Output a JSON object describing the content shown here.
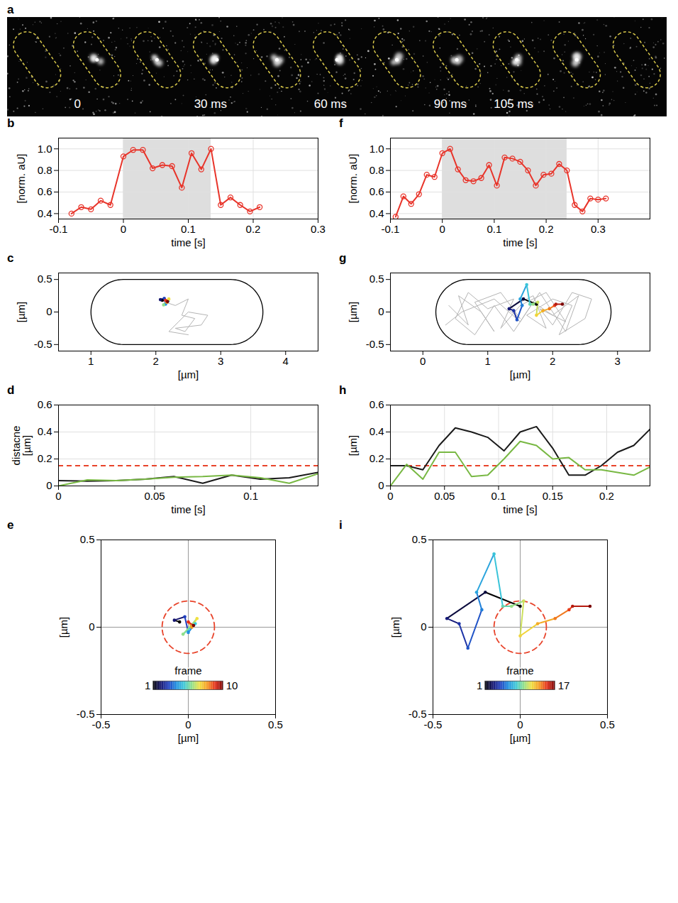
{
  "chart_data": [
    {
      "panel": "a",
      "type": "image",
      "frame_labels": [
        null,
        "0",
        null,
        "30 ms",
        null,
        "60 ms",
        null,
        "90 ms",
        "105 ms",
        null,
        null
      ]
    },
    {
      "panel": "b",
      "type": "line",
      "xlabel": "time [s]",
      "ylabel": "[norm. aU]",
      "xlim": [
        -0.1,
        0.3
      ],
      "xticks": [
        -0.1,
        0,
        0.1,
        0.2,
        0.3
      ],
      "ylim": [
        0.35,
        1.1
      ],
      "yticks": [
        0.4,
        0.6,
        0.8,
        {
          "value": 1,
          "label": "1.0"
        }
      ],
      "grid": true,
      "shaded_interval": [
        0,
        0.135
      ],
      "x": [
        -0.08,
        -0.065,
        -0.05,
        -0.035,
        -0.02,
        0,
        0.015,
        0.03,
        0.045,
        0.06,
        0.075,
        0.09,
        0.105,
        0.12,
        0.135,
        0.15,
        0.165,
        0.18,
        0.195,
        0.21
      ],
      "series": [
        {
          "color": "#e8342a",
          "marker": "circle",
          "values": [
            0.4,
            0.46,
            0.44,
            0.52,
            0.48,
            0.93,
            0.99,
            0.99,
            0.82,
            0.85,
            0.84,
            0.64,
            0.96,
            0.81,
            1.0,
            0.48,
            0.55,
            0.48,
            0.42,
            0.46
          ]
        }
      ]
    },
    {
      "panel": "c",
      "type": "trajectory",
      "xlabel": "[µm]",
      "ylabel": "[µm]",
      "xlim": [
        0.5,
        4.5
      ],
      "xticks": [
        1,
        2,
        3,
        4
      ],
      "ylim": [
        -0.6,
        0.6
      ],
      "yticks": [
        -0.5,
        0,
        0.5
      ],
      "grid": false,
      "cell": {
        "x": [
          1.0,
          3.65
        ],
        "y": [
          -0.5,
          0.5
        ]
      },
      "background_track": {
        "color": "#b4b4b4",
        "x": [
          2.15,
          2.3,
          2.5,
          2.4,
          2.6,
          2.45,
          2.3,
          2.7,
          2.8,
          2.5,
          2.35,
          2.2,
          2.5
        ],
        "y": [
          0.15,
          0.1,
          0.2,
          -0.05,
          -0.1,
          -0.3,
          -0.25,
          -0.2,
          -0.05,
          0.0,
          -0.15,
          -0.3,
          -0.35
        ]
      },
      "track": {
        "x": [
          2.1,
          2.07,
          2.13,
          2.15,
          2.19,
          2.12,
          2.2,
          2.17,
          2.15,
          2.18
        ],
        "y": [
          0.18,
          0.19,
          0.21,
          0.12,
          0.17,
          0.11,
          0.2,
          0.15,
          0.18,
          0.16
        ]
      }
    },
    {
      "panel": "d",
      "type": "line",
      "xlabel": "time [s]",
      "ylabel": "distacne [µm]",
      "xlim": [
        0,
        0.135
      ],
      "xticks": [
        0,
        0.05,
        0.1
      ],
      "ylim": [
        0,
        0.6
      ],
      "yticks": [
        0,
        0.2,
        0.4,
        0.6
      ],
      "grid": true,
      "threshold": {
        "value": 0.15,
        "color": "#e8432a",
        "line_style": "dashed"
      },
      "x": [
        0,
        0.015,
        0.03,
        0.045,
        0.06,
        0.075,
        0.09,
        0.105,
        0.12,
        0.135
      ],
      "series": [
        {
          "color": "#1a1a1a",
          "values": [
            0.04,
            0.035,
            0.04,
            0.05,
            0.07,
            0.02,
            0.08,
            0.05,
            0.06,
            0.1
          ]
        },
        {
          "color": "#78b843",
          "values": [
            0,
            0.045,
            0.04,
            0.05,
            0.065,
            0.07,
            0.08,
            0.06,
            0.02,
            0.09
          ]
        }
      ]
    },
    {
      "panel": "e",
      "type": "trajectory",
      "xlabel": "[µm]",
      "ylabel": "[µm]",
      "xlim": [
        -0.5,
        0.5
      ],
      "xticks": [
        -0.5,
        0,
        0.5
      ],
      "ylim": [
        -0.5,
        0.5
      ],
      "yticks": [
        -0.5,
        0,
        0.5
      ],
      "grid": true,
      "threshold": {
        "value": 0.15,
        "color": "#e8432a",
        "line_style": "dashed"
      },
      "track": {
        "x": [
          -0.05,
          -0.08,
          -0.02,
          0.0,
          0.04,
          -0.03,
          0.05,
          0.02,
          0.0,
          0.03
        ],
        "y": [
          0.03,
          0.04,
          0.06,
          -0.03,
          0.02,
          -0.04,
          0.05,
          0.0,
          0.03,
          0.01
        ]
      },
      "colorbar": {
        "label": "frame",
        "domain": [
          1,
          10
        ],
        "ticks": [
          1,
          10
        ]
      }
    },
    {
      "panel": "f",
      "type": "line",
      "xlabel": "time [s]",
      "ylabel": "[norm. aU]",
      "xlim": [
        -0.1,
        0.4
      ],
      "xticks": [
        -0.1,
        0,
        0.1,
        0.2,
        0.3
      ],
      "ylim": [
        0.35,
        1.1
      ],
      "yticks": [
        0.4,
        0.6,
        0.8,
        {
          "value": 1,
          "label": "1.0"
        }
      ],
      "grid": true,
      "shaded_interval": [
        0,
        0.24
      ],
      "x": [
        -0.09,
        -0.075,
        -0.06,
        -0.045,
        -0.03,
        -0.015,
        0,
        0.015,
        0.03,
        0.045,
        0.06,
        0.075,
        0.09,
        0.105,
        0.12,
        0.135,
        0.15,
        0.165,
        0.18,
        0.195,
        0.21,
        0.225,
        0.24,
        0.255,
        0.27,
        0.285,
        0.3,
        0.315
      ],
      "series": [
        {
          "color": "#e8342a",
          "marker": "circle",
          "values": [
            0.37,
            0.56,
            0.49,
            0.58,
            0.76,
            0.74,
            0.96,
            1.0,
            0.81,
            0.71,
            0.7,
            0.73,
            0.85,
            0.66,
            0.92,
            0.91,
            0.88,
            0.8,
            0.66,
            0.76,
            0.77,
            0.86,
            0.8,
            0.48,
            0.42,
            0.54,
            0.53,
            0.54
          ]
        }
      ]
    },
    {
      "panel": "g",
      "type": "trajectory",
      "xlabel": "[µm]",
      "ylabel": "[µm]",
      "xlim": [
        -0.5,
        3.5
      ],
      "xticks": [
        0,
        1,
        2,
        3
      ],
      "ylim": [
        -0.6,
        0.6
      ],
      "yticks": [
        -0.5,
        0,
        0.5
      ],
      "grid": false,
      "cell": {
        "x": [
          0.2,
          2.9
        ],
        "y": [
          -0.5,
          0.5
        ]
      },
      "background_track": {
        "color": "#b4b4b4",
        "x": [
          0.4,
          0.7,
          0.55,
          0.9,
          1.1,
          0.8,
          1.2,
          1.5,
          1.3,
          1.7,
          1.9,
          1.6,
          2.0,
          2.3,
          2.1,
          2.5,
          2.6,
          2.3,
          2.0,
          1.8,
          2.2,
          1.9,
          1.5,
          1.2,
          1.4,
          1.0,
          0.7,
          0.5,
          0.8,
          1.1,
          1.4,
          1.7,
          2.0,
          2.4,
          2.2,
          1.8,
          1.5,
          1.1,
          0.6,
          0.35
        ],
        "y": [
          0.1,
          -0.2,
          0.25,
          0.0,
          -0.3,
          0.15,
          0.3,
          -0.1,
          0.05,
          0.25,
          -0.25,
          -0.05,
          0.2,
          0.1,
          -0.35,
          -0.1,
          0.2,
          0.3,
          -0.2,
          0.05,
          -0.15,
          0.3,
          0.1,
          -0.25,
          0.2,
          0.05,
          0.3,
          -0.1,
          -0.35,
          0.1,
          -0.3,
          0.15,
          -0.05,
          0.25,
          -0.3,
          0.3,
          -0.15,
          0.2,
          0.0,
          -0.2
        ]
      },
      "track": {
        "x": [
          1.75,
          1.55,
          1.33,
          1.4,
          1.45,
          1.53,
          1.5,
          1.6,
          1.65,
          1.7,
          1.77,
          1.75,
          1.85,
          1.95,
          2.03,
          2.05,
          2.15
        ],
        "y": [
          0.12,
          0.2,
          0.05,
          0.02,
          -0.12,
          0.1,
          0.2,
          0.42,
          0.12,
          0.12,
          0.15,
          -0.05,
          0.02,
          0.05,
          0.1,
          0.12,
          0.12
        ]
      }
    },
    {
      "panel": "h",
      "type": "line",
      "xlabel": "time [s]",
      "ylabel": "[µm]",
      "xlim": [
        0,
        0.24
      ],
      "xticks": [
        0,
        0.05,
        0.1,
        0.15,
        0.2
      ],
      "ylim": [
        0,
        0.6
      ],
      "yticks": [
        0,
        0.2,
        0.4,
        0.6
      ],
      "grid": true,
      "threshold": {
        "value": 0.15,
        "color": "#e8432a",
        "line_style": "dashed"
      },
      "x": [
        0,
        0.015,
        0.03,
        0.045,
        0.06,
        0.075,
        0.09,
        0.105,
        0.12,
        0.135,
        0.15,
        0.165,
        0.18,
        0.195,
        0.21,
        0.225,
        0.24
      ],
      "series": [
        {
          "color": "#1a1a1a",
          "values": [
            0.15,
            0.15,
            0.12,
            0.3,
            0.43,
            0.4,
            0.36,
            0.26,
            0.4,
            0.44,
            0.28,
            0.08,
            0.08,
            0.15,
            0.25,
            0.3,
            0.42
          ]
        },
        {
          "color": "#78b843",
          "values": [
            0.0,
            0.16,
            0.05,
            0.25,
            0.25,
            0.07,
            0.08,
            0.2,
            0.33,
            0.3,
            0.2,
            0.21,
            0.12,
            0.12,
            0.1,
            0.08,
            0.14
          ]
        }
      ]
    },
    {
      "panel": "i",
      "type": "trajectory",
      "xlabel": "[µm]",
      "ylabel": "[µm]",
      "xlim": [
        -0.5,
        0.5
      ],
      "xticks": [
        -0.5,
        0,
        0.5
      ],
      "ylim": [
        -0.5,
        0.5
      ],
      "yticks": [
        -0.5,
        0,
        0.5
      ],
      "grid": true,
      "threshold": {
        "value": 0.15,
        "color": "#e8432a",
        "line_style": "dashed"
      },
      "track": {
        "x": [
          0.0,
          -0.2,
          -0.42,
          -0.35,
          -0.3,
          -0.22,
          -0.25,
          -0.15,
          -0.1,
          -0.05,
          0.02,
          0.0,
          0.1,
          0.2,
          0.28,
          0.3,
          0.4
        ],
        "y": [
          0.12,
          0.2,
          0.05,
          0.02,
          -0.12,
          0.1,
          0.2,
          0.42,
          0.12,
          0.12,
          0.15,
          -0.05,
          0.02,
          0.05,
          0.1,
          0.12,
          0.12
        ]
      },
      "colorbar": {
        "label": "frame",
        "domain": [
          1,
          17
        ],
        "ticks": [
          1,
          17
        ]
      }
    }
  ]
}
